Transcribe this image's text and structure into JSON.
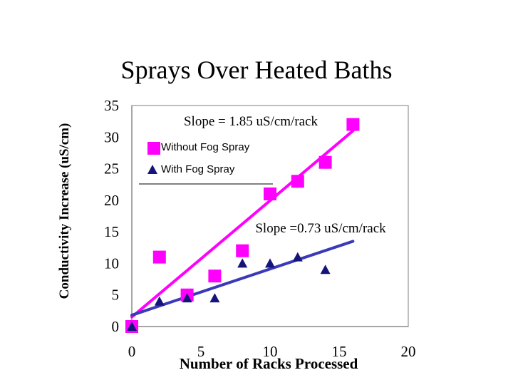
{
  "chart_data": {
    "type": "scatter",
    "title": "Sprays Over Heated Baths",
    "xlabel": "Number of Racks Processed",
    "ylabel": "Conductivity Increase (uS/cm)",
    "xlim": [
      0,
      20
    ],
    "ylim": [
      0,
      35
    ],
    "x_ticks": [
      "0",
      "5",
      "10",
      "15",
      "20"
    ],
    "y_ticks": [
      "0",
      "5",
      "10",
      "15",
      "20",
      "25",
      "30",
      "35"
    ],
    "grid": false,
    "legend_position": "top-left",
    "series": [
      {
        "name": "Without Fog Spray",
        "marker": "square",
        "color": "#ff00ff",
        "x": [
          0,
          2,
          4,
          6,
          8,
          10,
          12,
          14,
          16
        ],
        "y": [
          0,
          11,
          5,
          8,
          12,
          21,
          23,
          26,
          32
        ]
      },
      {
        "name": "With Fog Spray",
        "marker": "triangle",
        "color": "#14147a",
        "x": [
          0,
          2,
          4,
          6,
          8,
          10,
          12,
          14
        ],
        "y": [
          0,
          4,
          4.5,
          4.5,
          10,
          10,
          11,
          9
        ]
      }
    ],
    "trendlines": [
      {
        "series": "Without Fog Spray",
        "color": "#ff00ff",
        "x": [
          0,
          16
        ],
        "y": [
          1.5,
          31
        ]
      },
      {
        "series": "With Fog Spray",
        "color": "#3a3ab8",
        "x": [
          0,
          16
        ],
        "y": [
          1.8,
          13.5
        ]
      }
    ],
    "annotations": [
      {
        "text": "Slope = 1.85 uS/cm/rack"
      },
      {
        "text": "Slope =0.73 uS/cm/rack"
      }
    ]
  }
}
